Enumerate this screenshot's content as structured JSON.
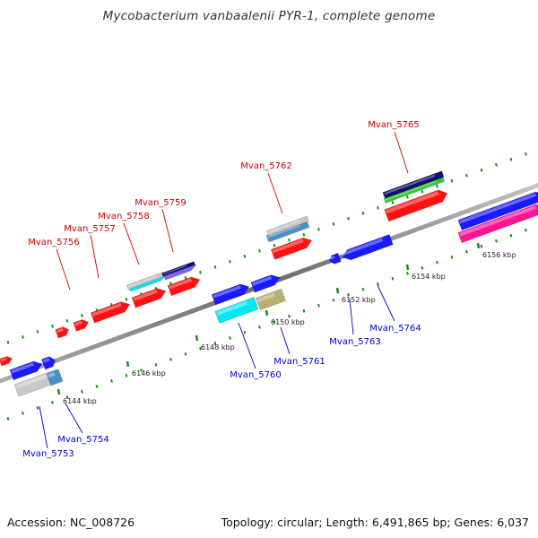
{
  "title": "Mycobacterium vanbaalenii PYR-1, complete genome",
  "footer": {
    "accession": "Accession: NC_008726",
    "summary": "Topology: circular; Length: 6,491,865 bp; Genes: 6,037"
  },
  "colors": {
    "forward_label": "#cc0000",
    "reverse_label": "#0000cc",
    "tick": "#228822",
    "red": "#ff1111",
    "blue": "#1a1aff",
    "cyan": "#00e8f0",
    "lightblue": "#4a90c8",
    "gray": "#c8c8c8",
    "purple": "#7b68ee",
    "navy": "#101070",
    "green": "#33cc33",
    "magenta": "#ff1493",
    "olive": "#b8b070"
  },
  "scale": {
    "ticks": [
      "6144 kbp",
      "6146 kbp",
      "6148 kbp",
      "6150 kbp",
      "6152 kbp",
      "6154 kbp",
      "6156 kbp"
    ]
  },
  "genes_forward": [
    {
      "label": "Mvan_5756"
    },
    {
      "label": "Mvan_5757"
    },
    {
      "label": "Mvan_5758"
    },
    {
      "label": "Mvan_5759"
    },
    {
      "label": "Mvan_5762"
    },
    {
      "label": "Mvan_5765"
    }
  ],
  "genes_reverse": [
    {
      "label": "Mvan_5753"
    },
    {
      "label": "Mvan_5754"
    },
    {
      "label": "Mvan_5760"
    },
    {
      "label": "Mvan_5761"
    },
    {
      "label": "Mvan_5763"
    },
    {
      "label": "Mvan_5764"
    }
  ]
}
